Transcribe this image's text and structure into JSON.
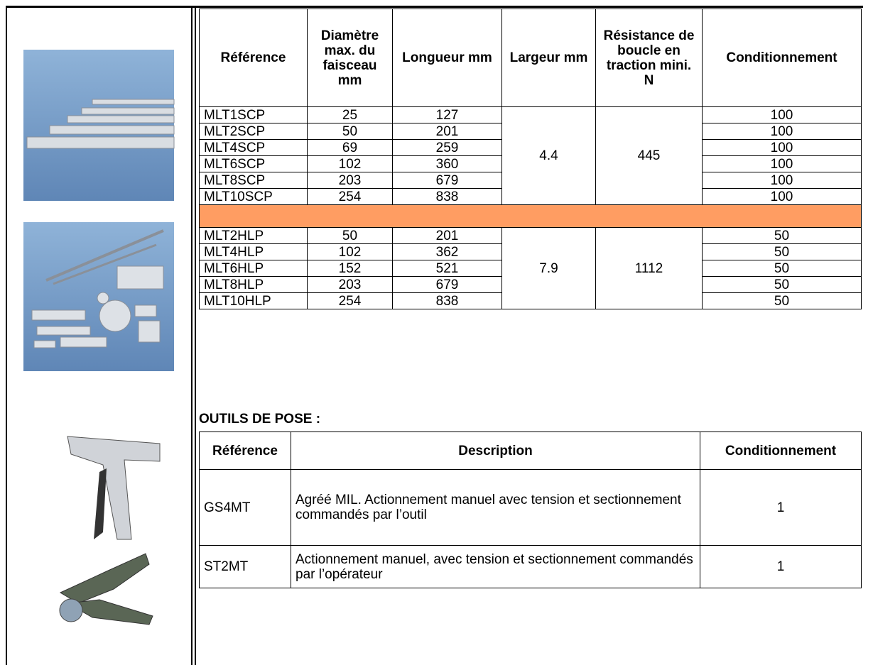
{
  "table1": {
    "headers": [
      "Référence",
      "Diamètre max. du faisceau mm",
      "Longueur mm",
      "Largeur mm",
      "Résistance de boucle en traction mini. N",
      "Conditionnement"
    ],
    "groups": [
      {
        "largeur": "4.4",
        "resistance": "445",
        "rows": [
          [
            "MLT1SCP",
            "25",
            "127",
            "100"
          ],
          [
            "MLT2SCP",
            "50",
            "201",
            "100"
          ],
          [
            "MLT4SCP",
            "69",
            "259",
            "100"
          ],
          [
            "MLT6SCP",
            "102",
            "360",
            "100"
          ],
          [
            "MLT8SCP",
            "203",
            "679",
            "100"
          ],
          [
            "MLT10SCP",
            "254",
            "838",
            "100"
          ]
        ]
      },
      {
        "largeur": "7.9",
        "resistance": "1112",
        "rows": [
          [
            "MLT2HLP",
            "50",
            "201",
            "50"
          ],
          [
            "MLT4HLP",
            "102",
            "362",
            "50"
          ],
          [
            "MLT6HLP",
            "152",
            "521",
            "50"
          ],
          [
            "MLT8HLP",
            "203",
            "679",
            "50"
          ],
          [
            "MLT10HLP",
            "254",
            "838",
            "50"
          ]
        ]
      }
    ]
  },
  "tools": {
    "heading": "OUTILS DE POSE :",
    "headers": [
      "Référence",
      "Description",
      "Conditionnement"
    ],
    "rows": [
      [
        "GS4MT",
        "Agréé MIL. Actionnement manuel avec tension et sectionnement commandés par l’outil",
        "1"
      ],
      [
        "ST2MT",
        "Actionnement manuel, avec tension et sectionnement commandés par l’opérateur",
        "1"
      ]
    ]
  }
}
